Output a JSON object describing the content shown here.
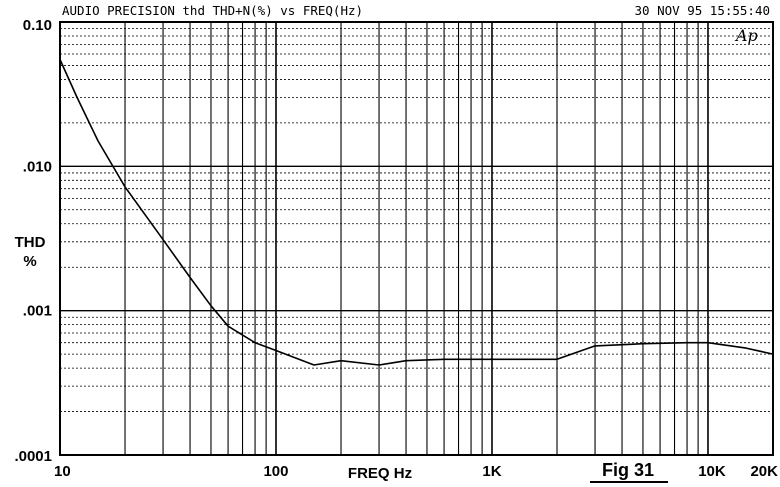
{
  "header": {
    "left": "AUDIO PRECISION thd THD+N(%) vs FREQ(Hz)",
    "right": "30 NOV 95 15:55:40"
  },
  "logo": "Ap",
  "figure_label": "Fig 31",
  "colors": {
    "ink": "#000000",
    "background": "#ffffff"
  },
  "chart_data": {
    "type": "line",
    "title": "AUDIO PRECISION thd THD+N(%) vs FREQ(Hz)",
    "xlabel": "FREQ Hz",
    "ylabel": "THD %",
    "xscale": "log",
    "yscale": "log",
    "xlim": [
      10,
      20000
    ],
    "ylim": [
      0.0001,
      0.1
    ],
    "grid": true,
    "x_tick_labels": [
      "10",
      "100",
      "1K",
      "10K",
      "20K"
    ],
    "x_ticks": [
      10,
      100,
      1000,
      10000,
      20000
    ],
    "y_tick_labels": [
      "0.10",
      ".010",
      ".001",
      ".0001"
    ],
    "y_ticks": [
      0.1,
      0.01,
      0.001,
      0.0001
    ],
    "series": [
      {
        "x": [
          10,
          12,
          15,
          20,
          30,
          40,
          50,
          60,
          80,
          100,
          150,
          200,
          300,
          400,
          600,
          1000,
          2000,
          3000,
          5000,
          8000,
          10000,
          15000,
          20000
        ],
        "y": [
          0.055,
          0.03,
          0.015,
          0.0072,
          0.0031,
          0.0017,
          0.00108,
          0.00078,
          0.0006,
          0.00053,
          0.00042,
          0.00045,
          0.00042,
          0.00045,
          0.00046,
          0.00046,
          0.00046,
          0.00057,
          0.00059,
          0.0006,
          0.0006,
          0.00055,
          0.0005
        ]
      }
    ]
  }
}
